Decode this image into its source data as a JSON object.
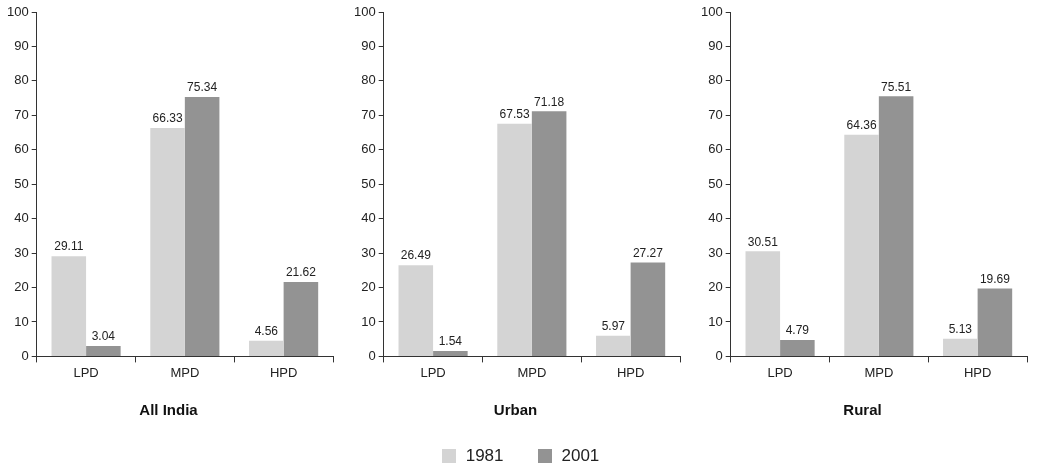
{
  "chart_data": [
    {
      "type": "bar",
      "title": "All India",
      "categories": [
        "LPD",
        "MPD",
        "HPD"
      ],
      "series": [
        {
          "color": "#d4d4d4",
          "values": [
            29.11,
            66.33,
            4.56
          ]
        },
        {
          "color": "#939393",
          "values": [
            3.04,
            75.34,
            21.62
          ]
        }
      ],
      "ylim": [
        0,
        100
      ],
      "yticks": [
        0,
        10,
        20,
        30,
        40,
        50,
        60,
        70,
        80,
        90,
        100
      ],
      "grid": false,
      "legend": false,
      "data_labels": true
    },
    {
      "type": "bar",
      "title": "Urban",
      "categories": [
        "LPD",
        "MPD",
        "HPD"
      ],
      "series": [
        {
          "name": "1981",
          "color": "#d4d4d4",
          "values": [
            26.49,
            67.53,
            5.97
          ]
        },
        {
          "name": "2001",
          "color": "#939393",
          "values": [
            1.54,
            71.18,
            27.27
          ]
        }
      ],
      "ylim": [
        0,
        100
      ],
      "yticks": [
        0,
        10,
        20,
        30,
        40,
        50,
        60,
        70,
        80,
        90,
        100
      ],
      "grid": false,
      "legend": "bottom",
      "data_labels": true
    },
    {
      "type": "bar",
      "title": "Rural",
      "categories": [
        "LPD",
        "MPD",
        "HPD"
      ],
      "series": [
        {
          "color": "#d4d4d4",
          "values": [
            30.51,
            64.36,
            5.13
          ]
        },
        {
          "color": "#939393",
          "values": [
            4.79,
            75.51,
            19.69
          ]
        }
      ],
      "ylim": [
        0,
        100
      ],
      "yticks": [
        0,
        10,
        20,
        30,
        40,
        50,
        60,
        70,
        80,
        90,
        100
      ],
      "grid": false,
      "legend": false,
      "data_labels": true
    }
  ]
}
